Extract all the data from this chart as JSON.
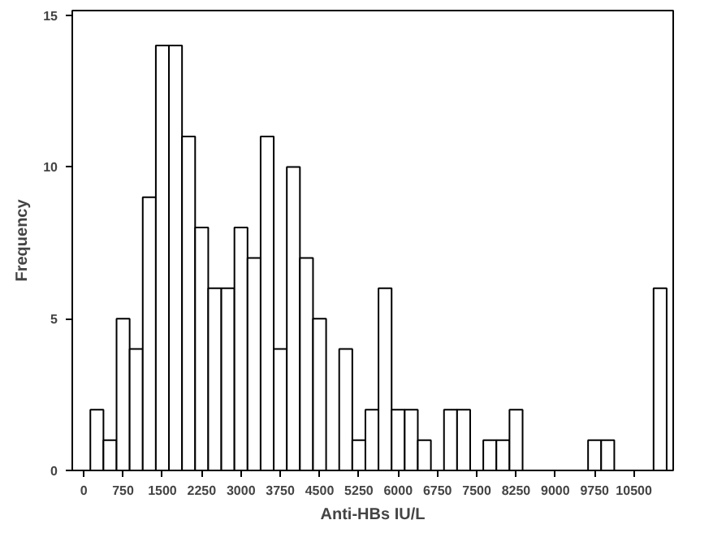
{
  "chart_data": {
    "type": "histogram",
    "xlabel": "Anti-HBs IU/L",
    "ylabel": "Frequency",
    "bins": [
      125,
      375,
      625,
      875,
      1125,
      1375,
      1625,
      1875,
      2125,
      2375,
      2625,
      2875,
      3125,
      3375,
      3625,
      3875,
      4125,
      4375,
      4625,
      4875,
      5125,
      5375,
      5625,
      5875,
      6125,
      6375,
      6625,
      6875,
      7125,
      7375,
      7625,
      7875,
      8125,
      8375,
      8625,
      8875,
      9125,
      9375,
      9625,
      9875,
      10125,
      10375,
      10625,
      10875,
      11125
    ],
    "values": [
      2,
      1,
      5,
      4,
      9,
      14,
      14,
      11,
      8,
      6,
      6,
      8,
      7,
      11,
      4,
      10,
      7,
      5,
      0,
      4,
      1,
      2,
      6,
      2,
      2,
      1,
      0,
      2,
      2,
      0,
      1,
      1,
      2,
      0,
      0,
      0,
      0,
      0,
      1,
      1,
      0,
      0,
      0,
      6
    ],
    "color": "#ffffff",
    "xlim": [
      -220,
      11250
    ],
    "ylim": [
      0,
      15.15
    ],
    "xticks": [
      0,
      750,
      1500,
      2250,
      3000,
      3750,
      4500,
      5250,
      6000,
      6750,
      7500,
      8250,
      9000,
      9750,
      10500
    ],
    "yticks": [
      0,
      5,
      10,
      15
    ],
    "grid": false
  }
}
